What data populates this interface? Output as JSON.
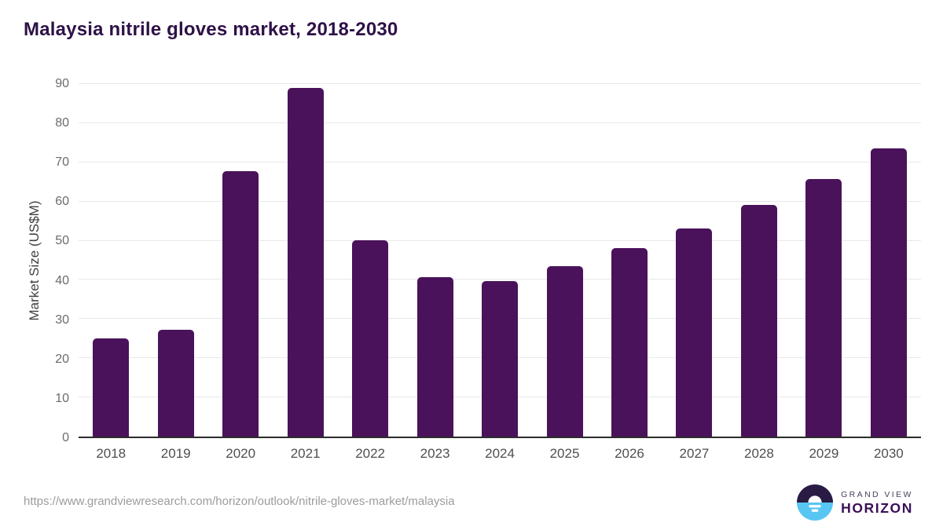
{
  "header": {
    "title": "Malaysia nitrile gloves market, 2018-2030"
  },
  "chart_data": {
    "type": "bar",
    "title": "Malaysia nitrile gloves market, 2018-2030",
    "categories": [
      "2018",
      "2019",
      "2020",
      "2021",
      "2022",
      "2023",
      "2024",
      "2025",
      "2026",
      "2027",
      "2028",
      "2029",
      "2030"
    ],
    "values": [
      25.0,
      27.2,
      67.8,
      89.0,
      50.2,
      40.6,
      39.6,
      43.5,
      48.2,
      53.2,
      59.2,
      65.8,
      73.5
    ],
    "series_name": "Market Size",
    "xlabel": "",
    "ylabel": "Market Size (US$M)",
    "ylim": [
      0,
      90
    ],
    "yticks": [
      0,
      10,
      20,
      30,
      40,
      50,
      60,
      70,
      80,
      90
    ],
    "grid": true,
    "legend": false,
    "bar_color": "#4a125a"
  },
  "footer": {
    "source_url": "https://www.grandviewresearch.com/horizon/outlook/nitrile-gloves-market/malaysia",
    "logo": {
      "brand_line1": "GRAND VIEW",
      "brand_line2": "HORIZON",
      "icon": "horizon-sun-icon"
    }
  },
  "colors": {
    "bar": "#4a125a",
    "title": "#2e1147",
    "axis_line": "#2c2c2c",
    "gridline": "#e8e8e8",
    "ytick_label": "#6b6b6b",
    "xtick_label": "#4f4f4f",
    "url_text": "#9c9c9c",
    "logo_navy": "#2a1b45",
    "logo_blue": "#58c6f2"
  }
}
